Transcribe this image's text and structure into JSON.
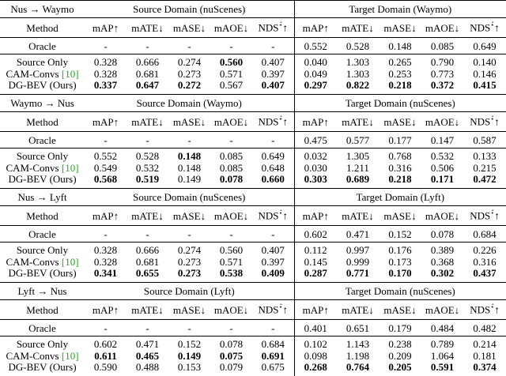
{
  "columns": [
    "Method",
    "mAP↑",
    "mATE↓",
    "mASE↓",
    "mAOE↓",
    {
      "text": "NDS",
      "sup": "⋆̂",
      "arrow": "↑"
    }
  ],
  "blocks": [
    {
      "direction": "Nus → Waymo",
      "source_domain": "Source Domain (nuScenes)",
      "target_domain": "Target Domain (Waymo)",
      "rows": [
        {
          "name": "Oracle",
          "source": [
            "-",
            "-",
            "-",
            "-",
            "-"
          ],
          "target": [
            "0.552",
            "0.528",
            "0.148",
            "0.085",
            "0.649"
          ],
          "bold_source": [],
          "bold_target": []
        },
        {
          "name": "Source Only",
          "source": [
            "0.328",
            "0.666",
            "0.274",
            "0.560",
            "0.407"
          ],
          "target": [
            "0.040",
            "1.303",
            "0.265",
            "0.790",
            "0.140"
          ],
          "bold_source": [
            3
          ],
          "bold_target": []
        },
        {
          "name": "CAM-Convs",
          "cite": "[10]",
          "source": [
            "0.328",
            "0.681",
            "0.273",
            "0.571",
            "0.397"
          ],
          "target": [
            "0.049",
            "1.303",
            "0.253",
            "0.773",
            "0.146"
          ],
          "bold_source": [],
          "bold_target": []
        },
        {
          "name": "DG-BEV (Ours)",
          "source": [
            "0.337",
            "0.647",
            "0.272",
            "0.567",
            "0.407"
          ],
          "target": [
            "0.297",
            "0.822",
            "0.218",
            "0.372",
            "0.415"
          ],
          "bold_source": [
            0,
            1,
            2,
            4
          ],
          "bold_target": [
            0,
            1,
            2,
            3,
            4
          ]
        }
      ]
    },
    {
      "direction": "Waymo → Nus",
      "source_domain": "Source Domain (Waymo)",
      "target_domain": "Target Domain (nuScenes)",
      "rows": [
        {
          "name": "Oracle",
          "source": [
            "-",
            "-",
            "-",
            "-",
            "-"
          ],
          "target": [
            "0.475",
            "0.577",
            "0.177",
            "0.147",
            "0.587"
          ],
          "bold_source": [],
          "bold_target": []
        },
        {
          "name": "Source Only",
          "source": [
            "0.552",
            "0.528",
            "0.148",
            "0.085",
            "0.649"
          ],
          "target": [
            "0.032",
            "1.305",
            "0.768",
            "0.532",
            "0.133"
          ],
          "bold_source": [
            2
          ],
          "bold_target": []
        },
        {
          "name": "CAM-Convs",
          "cite": "[10]",
          "source": [
            "0.549",
            "0.532",
            "0.148",
            "0.085",
            "0.648"
          ],
          "target": [
            "0.030",
            "1.211",
            "0.316",
            "0.506",
            "0.215"
          ],
          "bold_source": [],
          "bold_target": []
        },
        {
          "name": "DG-BEV (Ours)",
          "source": [
            "0.568",
            "0.519",
            "0.149",
            "0.078",
            "0.660"
          ],
          "target": [
            "0.303",
            "0.689",
            "0.218",
            "0.171",
            "0.472"
          ],
          "bold_source": [
            0,
            1,
            3,
            4
          ],
          "bold_target": [
            0,
            1,
            2,
            3,
            4
          ]
        }
      ]
    },
    {
      "direction": "Nus → Lyft",
      "source_domain": "Source Domain (nuScenes)",
      "target_domain": "Target Domain (Lyft)",
      "rows": [
        {
          "name": "Oracle",
          "source": [
            "-",
            "-",
            "-",
            "-",
            "-"
          ],
          "target": [
            "0.602",
            "0.471",
            "0.152",
            "0.078",
            "0.684"
          ],
          "bold_source": [],
          "bold_target": []
        },
        {
          "name": "Source Only",
          "source": [
            "0.328",
            "0.666",
            "0.274",
            "0.560",
            "0.407"
          ],
          "target": [
            "0.112",
            "0.997",
            "0.176",
            "0.389",
            "0.226"
          ],
          "bold_source": [],
          "bold_target": []
        },
        {
          "name": "CAM-Convs",
          "cite": "[10]",
          "source": [
            "0.328",
            "0.681",
            "0.273",
            "0.571",
            "0.397"
          ],
          "target": [
            "0.145",
            "0.999",
            "0.173",
            "0.368",
            "0.316"
          ],
          "bold_source": [],
          "bold_target": []
        },
        {
          "name": "DG-BEV (Ours)",
          "source": [
            "0.341",
            "0.655",
            "0.273",
            "0.538",
            "0.409"
          ],
          "target": [
            "0.287",
            "0.771",
            "0.170",
            "0.302",
            "0.437"
          ],
          "bold_source": [
            0,
            1,
            2,
            3,
            4
          ],
          "bold_target": [
            0,
            1,
            2,
            3,
            4
          ]
        }
      ]
    },
    {
      "direction": "Lyft → Nus",
      "source_domain": "Source Domain (Lyft)",
      "target_domain": "Target Domain (nuScenes)",
      "rows": [
        {
          "name": "Oracle",
          "source": [
            "-",
            "-",
            "-",
            "-",
            "-"
          ],
          "target": [
            "0.401",
            "0.651",
            "0.179",
            "0.484",
            "0.482"
          ],
          "bold_source": [],
          "bold_target": []
        },
        {
          "name": "Source Only",
          "source": [
            "0.602",
            "0.471",
            "0.152",
            "0.078",
            "0.684"
          ],
          "target": [
            "0.102",
            "1.143",
            "0.238",
            "0.789",
            "0.214"
          ],
          "bold_source": [],
          "bold_target": []
        },
        {
          "name": "CAM-Convs",
          "cite": "[10]",
          "source": [
            "0.611",
            "0.465",
            "0.149",
            "0.075",
            "0.691"
          ],
          "target": [
            "0.098",
            "1.198",
            "0.209",
            "1.064",
            "0.181"
          ],
          "bold_source": [
            0,
            1,
            2,
            3,
            4
          ],
          "bold_target": []
        },
        {
          "name": "DG-BEV (Ours)",
          "source": [
            "0.590",
            "0.488",
            "0.153",
            "0.079",
            "0.675"
          ],
          "target": [
            "0.268",
            "0.764",
            "0.205",
            "0.591",
            "0.374"
          ],
          "bold_source": [],
          "bold_target": [
            0,
            1,
            2,
            3,
            4
          ]
        }
      ]
    }
  ]
}
